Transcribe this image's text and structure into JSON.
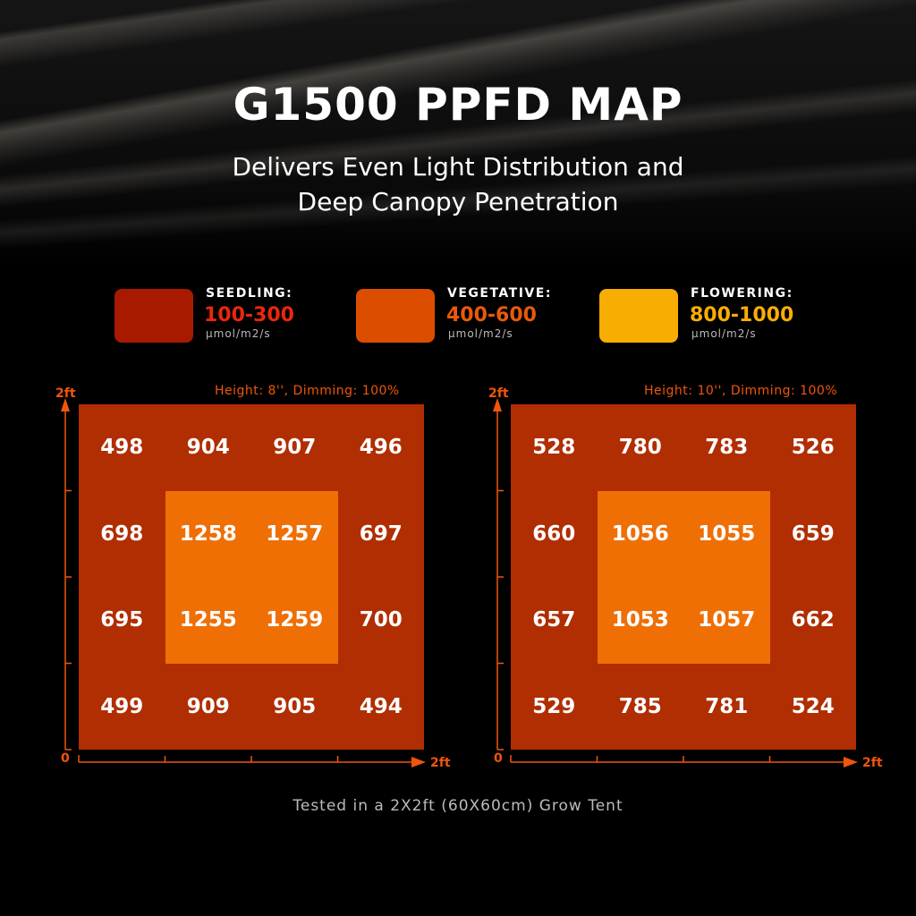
{
  "header": {
    "title": "G1500 PPFD MAP",
    "subtitle_line1": "Delivers Even Light Distribution and",
    "subtitle_line2": "Deep Canopy Penetration"
  },
  "legend": [
    {
      "name": "SEEDLING:",
      "range": "100-300",
      "unit": "μmol/m2/s",
      "color": "#a81a00",
      "text_color": "#e8280a"
    },
    {
      "name": "VEGETATIVE:",
      "range": "400-600",
      "unit": "μmol/m2/s",
      "color": "#dc4d00",
      "text_color": "#e85a08"
    },
    {
      "name": "FLOWERING:",
      "range": "800-1000",
      "unit": "μmol/m2/s",
      "color": "#f8ad03",
      "text_color": "#f8ad03"
    }
  ],
  "chart_data": [
    {
      "type": "heatmap",
      "title": "Height: 8'', Dimming: 100%",
      "x_axis": {
        "start_label": "0",
        "end_label": "2ft"
      },
      "y_axis": {
        "end_label": "2ft"
      },
      "values": [
        [
          498,
          904,
          907,
          496
        ],
        [
          698,
          1258,
          1257,
          697
        ],
        [
          695,
          1255,
          1259,
          700
        ],
        [
          499,
          909,
          905,
          494
        ]
      ]
    },
    {
      "type": "heatmap",
      "title": "Height: 10'', Dimming: 100%",
      "x_axis": {
        "start_label": "0",
        "end_label": "2ft"
      },
      "y_axis": {
        "end_label": "2ft"
      },
      "values": [
        [
          528,
          780,
          783,
          526
        ],
        [
          660,
          1056,
          1055,
          659
        ],
        [
          657,
          1053,
          1057,
          662
        ],
        [
          529,
          785,
          781,
          524
        ]
      ]
    }
  ],
  "colors": {
    "outer_zone": "#b02e02",
    "inner_zone": "#ef6f05",
    "axis": "#f0560a"
  },
  "footer": "Tested in a 2X2ft (60X60cm) Grow Tent"
}
